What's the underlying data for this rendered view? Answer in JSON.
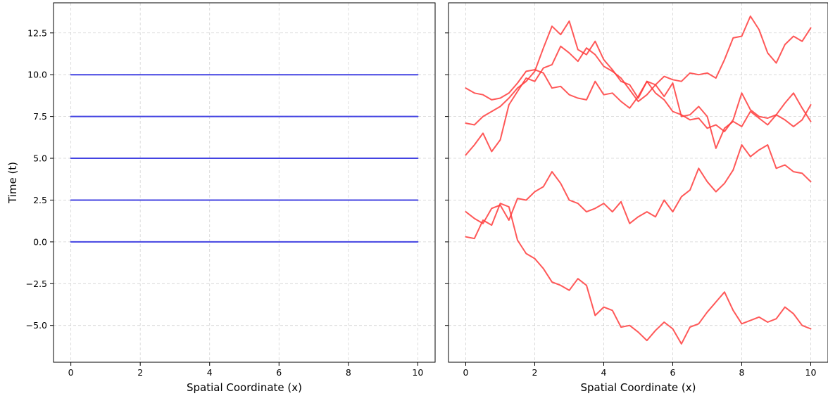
{
  "chart_data": [
    {
      "type": "line",
      "title": "",
      "xlabel": "Spatial Coordinate (x)",
      "ylabel": "Time (t)",
      "xlim": [
        -0.5,
        10.5
      ],
      "ylim": [
        -7.2,
        14.3
      ],
      "xticks": [
        0,
        2,
        4,
        6,
        8,
        10
      ],
      "xtick_labels": [
        "0",
        "2",
        "4",
        "6",
        "8",
        "10"
      ],
      "yticks": [
        -5.0,
        -2.5,
        0.0,
        2.5,
        5.0,
        7.5,
        10.0,
        12.5
      ],
      "ytick_labels": [
        "−5.0",
        "−2.5",
        "0.0",
        "2.5",
        "5.0",
        "7.5",
        "10.0",
        "12.5"
      ],
      "grid": true,
      "color": "#3a3ae0",
      "series": [
        {
          "x": [
            0,
            10
          ],
          "y": [
            0.0,
            0.0
          ]
        },
        {
          "x": [
            0,
            10
          ],
          "y": [
            2.5,
            2.5
          ]
        },
        {
          "x": [
            0,
            10
          ],
          "y": [
            5.0,
            5.0
          ]
        },
        {
          "x": [
            0,
            10
          ],
          "y": [
            7.5,
            7.5
          ]
        },
        {
          "x": [
            0,
            10
          ],
          "y": [
            10.0,
            10.0
          ]
        }
      ]
    },
    {
      "type": "line",
      "title": "",
      "xlabel": "Spatial Coordinate (x)",
      "ylabel": "",
      "xlim": [
        -0.5,
        10.5
      ],
      "ylim": [
        -7.2,
        14.3
      ],
      "xticks": [
        0,
        2,
        4,
        6,
        8,
        10
      ],
      "xtick_labels": [
        "0",
        "2",
        "4",
        "6",
        "8",
        "10"
      ],
      "yticks": [
        -5.0,
        -2.5,
        0.0,
        2.5,
        5.0,
        7.5,
        10.0,
        12.5
      ],
      "grid": true,
      "color": "#ff3b3b",
      "series": [
        {
          "x": [
            0,
            0.25,
            0.5,
            0.75,
            1.0,
            1.25,
            1.5,
            1.75,
            2.0,
            2.25,
            2.5,
            2.75,
            3.0,
            3.25,
            3.5,
            3.75,
            4.0,
            4.25,
            4.5,
            4.75,
            5.0,
            5.25,
            5.5,
            5.75,
            6.0,
            6.25,
            6.5,
            6.75,
            7.0,
            7.25,
            7.5,
            7.75,
            8.0,
            8.25,
            8.5,
            8.75,
            9.0,
            9.25,
            9.5,
            9.75,
            10.0
          ],
          "y": [
            9.2,
            8.9,
            8.8,
            8.5,
            8.6,
            8.9,
            9.5,
            10.2,
            10.3,
            10.1,
            9.2,
            9.3,
            8.8,
            8.6,
            8.5,
            9.6,
            8.8,
            8.9,
            8.4,
            8.0,
            8.7,
            9.6,
            8.9,
            8.5,
            7.8,
            7.6,
            7.3,
            7.4,
            6.8,
            7.0,
            6.6,
            7.3,
            8.9,
            7.9,
            7.5,
            7.4,
            7.6,
            8.3,
            8.9,
            8.0,
            7.2
          ]
        },
        {
          "x": [
            0,
            0.25,
            0.5,
            0.75,
            1.0,
            1.25,
            1.5,
            1.75,
            2.0,
            2.25,
            2.5,
            2.75,
            3.0,
            3.25,
            3.5,
            3.75,
            4.0,
            4.25,
            4.5,
            4.75,
            5.0,
            5.25,
            5.5,
            5.75,
            6.0,
            6.25,
            6.5,
            6.75,
            7.0,
            7.25,
            7.5,
            7.75,
            8.0,
            8.25,
            8.5,
            8.75,
            9.0,
            9.25,
            9.5,
            9.75,
            10.0
          ],
          "y": [
            7.1,
            7.0,
            7.5,
            7.8,
            8.1,
            8.6,
            9.2,
            9.6,
            10.2,
            11.6,
            12.9,
            12.4,
            13.2,
            11.5,
            11.2,
            12.0,
            10.9,
            10.3,
            9.6,
            9.4,
            8.6,
            9.6,
            9.4,
            9.9,
            9.7,
            9.6,
            10.1,
            10.0,
            10.1,
            9.8,
            10.9,
            12.2,
            12.3,
            13.5,
            12.7,
            11.3,
            10.7,
            11.8,
            12.3,
            12.0,
            12.8
          ]
        },
        {
          "x": [
            0,
            0.25,
            0.5,
            0.75,
            1.0,
            1.25,
            1.5,
            1.75,
            2.0,
            2.25,
            2.5,
            2.75,
            3.0,
            3.25,
            3.5,
            3.75,
            4.0,
            4.25,
            4.5,
            4.75,
            5.0,
            5.25,
            5.5,
            5.75,
            6.0,
            6.25,
            6.5,
            6.75,
            7.0,
            7.25,
            7.5,
            7.75,
            8.0,
            8.25,
            8.5,
            8.75,
            9.0,
            9.25,
            9.5,
            9.75,
            10.0
          ],
          "y": [
            5.2,
            5.8,
            6.5,
            5.4,
            6.1,
            8.2,
            9.0,
            9.8,
            9.6,
            10.4,
            10.6,
            11.7,
            11.3,
            10.8,
            11.6,
            11.2,
            10.5,
            10.2,
            9.8,
            9.1,
            8.4,
            8.8,
            9.4,
            8.7,
            9.5,
            7.5,
            7.6,
            8.1,
            7.5,
            5.6,
            6.8,
            7.2,
            6.9,
            7.8,
            7.4,
            7.0,
            7.6,
            7.3,
            6.9,
            7.3,
            8.2
          ]
        },
        {
          "x": [
            0,
            0.25,
            0.5,
            0.75,
            1.0,
            1.25,
            1.5,
            1.75,
            2.0,
            2.25,
            2.5,
            2.75,
            3.0,
            3.25,
            3.5,
            3.75,
            4.0,
            4.25,
            4.5,
            4.75,
            5.0,
            5.25,
            5.5,
            5.75,
            6.0,
            6.25,
            6.5,
            6.75,
            7.0,
            7.25,
            7.5,
            7.75,
            8.0,
            8.25,
            8.5,
            8.75,
            9.0,
            9.25,
            9.5,
            9.75,
            10.0
          ],
          "y": [
            1.8,
            1.4,
            1.1,
            2.0,
            2.2,
            1.3,
            2.6,
            2.5,
            3.0,
            3.3,
            4.2,
            3.5,
            2.5,
            2.3,
            1.8,
            2.0,
            2.3,
            1.8,
            2.4,
            1.1,
            1.5,
            1.8,
            1.5,
            2.5,
            1.8,
            2.7,
            3.1,
            4.4,
            3.6,
            3.0,
            3.5,
            4.3,
            5.8,
            5.1,
            5.5,
            5.8,
            4.4,
            4.6,
            4.2,
            4.1,
            3.6
          ]
        },
        {
          "x": [
            0,
            0.25,
            0.5,
            0.75,
            1.0,
            1.25,
            1.5,
            1.75,
            2.0,
            2.25,
            2.5,
            2.75,
            3.0,
            3.25,
            3.5,
            3.75,
            4.0,
            4.25,
            4.5,
            4.75,
            5.0,
            5.25,
            5.5,
            5.75,
            6.0,
            6.25,
            6.5,
            6.75,
            7.0,
            7.25,
            7.5,
            7.75,
            8.0,
            8.25,
            8.5,
            8.75,
            9.0,
            9.25,
            9.5,
            9.75,
            10.0
          ],
          "y": [
            0.3,
            0.2,
            1.3,
            1.0,
            2.3,
            2.1,
            0.1,
            -0.7,
            -1.0,
            -1.6,
            -2.4,
            -2.6,
            -2.9,
            -2.2,
            -2.6,
            -4.4,
            -3.9,
            -4.1,
            -5.1,
            -5.0,
            -5.4,
            -5.9,
            -5.3,
            -4.8,
            -5.2,
            -6.1,
            -5.1,
            -4.9,
            -4.2,
            -3.6,
            -3.0,
            -4.1,
            -4.9,
            -4.7,
            -4.5,
            -4.8,
            -4.6,
            -3.9,
            -4.3,
            -5.0,
            -5.2
          ]
        }
      ]
    }
  ]
}
